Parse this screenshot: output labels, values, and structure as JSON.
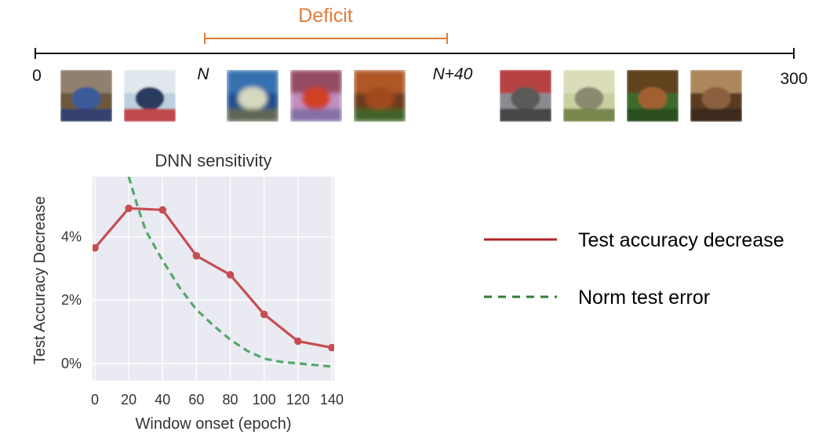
{
  "timeline": {
    "deficit_label": "Deficit",
    "start_label": "0",
    "end_label": "300",
    "deficit_start_label": "N",
    "deficit_end_label": "N+40",
    "line_color": "#111111",
    "deficit_color": "#e07b3a",
    "thumbnails": [
      {
        "name": "cat-thumbnail",
        "colors": [
          "#6b5a3a",
          "#9a8a7a",
          "#3a5a9a",
          "#2a3f7a"
        ]
      },
      {
        "name": "ship-thumbnail",
        "colors": [
          "#bcd0e0",
          "#e8ecf0",
          "#2a3a60",
          "#c03030"
        ]
      },
      {
        "name": "blurred-thumbnail-1",
        "colors": [
          "#1e4f8c",
          "#3b79b8",
          "#d6d8c0",
          "#6a6a4a"
        ]
      },
      {
        "name": "blurred-thumbnail-2",
        "colors": [
          "#c090c0",
          "#8a3a4a",
          "#d04020",
          "#7a6aa0"
        ]
      },
      {
        "name": "blurred-thumbnail-3",
        "colors": [
          "#6a3a1a",
          "#c0602a",
          "#a04a1a",
          "#3a6a2a"
        ]
      },
      {
        "name": "truck-thumbnail",
        "colors": [
          "#8a8a90",
          "#c03030",
          "#5a5a5a",
          "#3a3a3a"
        ]
      },
      {
        "name": "bird-thumbnail",
        "colors": [
          "#c8d0a0",
          "#e0e0c0",
          "#8a8a70",
          "#6a7a40"
        ]
      },
      {
        "name": "horse-thumbnail",
        "colors": [
          "#3a6a2a",
          "#6a3a1a",
          "#a06030",
          "#2a4a1a"
        ]
      },
      {
        "name": "frog-thumbnail",
        "colors": [
          "#5a3a20",
          "#c09a6a",
          "#8a6040",
          "#3a2a1a"
        ]
      }
    ]
  },
  "chart_data": {
    "type": "line",
    "title": "DNN sensitivity",
    "xlabel": "Window onset (epoch)",
    "ylabel": "Test Accuracy Decrease",
    "x_ticks": [
      0,
      20,
      40,
      60,
      80,
      100,
      120,
      140
    ],
    "y_ticks": [
      0,
      2,
      4
    ],
    "y_tick_labels": [
      "0%",
      "2%",
      "4%"
    ],
    "xlim": [
      0,
      140
    ],
    "ylim": [
      -0.55,
      5.9
    ],
    "grid": true,
    "background": "#eaeaf2",
    "series": [
      {
        "name": "Test accuracy decrease",
        "color": "#c44e52",
        "style": "solid",
        "markers": true,
        "x": [
          0,
          20,
          40,
          60,
          80,
          100,
          120,
          140
        ],
        "y": [
          3.65,
          4.9,
          4.85,
          3.4,
          2.8,
          1.55,
          0.7,
          0.5
        ]
      },
      {
        "name": "Norm test error",
        "color": "#55a868",
        "style": "dashed",
        "markers": false,
        "x": [
          20,
          25,
          30,
          40,
          50,
          60,
          70,
          80,
          90,
          100,
          110,
          120,
          130,
          140
        ],
        "y": [
          5.9,
          5.0,
          4.2,
          3.25,
          2.4,
          1.7,
          1.2,
          0.75,
          0.4,
          0.15,
          0.05,
          0.0,
          -0.05,
          -0.1
        ]
      }
    ]
  },
  "legend": {
    "position": "right",
    "items": [
      {
        "label": "Test accuracy decrease",
        "color": "#b22222",
        "style": "solid"
      },
      {
        "label": "Norm test error",
        "color": "#2e7d32",
        "style": "dashed"
      }
    ]
  }
}
